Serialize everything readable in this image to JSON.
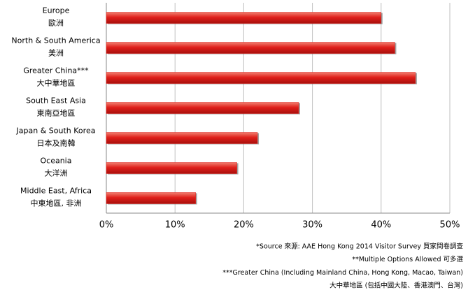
{
  "chart_data": {
    "type": "bar",
    "orientation": "horizontal",
    "categories": [
      "Europe",
      "North & South America",
      "Greater China***",
      "South East Asia",
      "Japan & South Korea",
      "Oceania",
      "Middle East, Africa"
    ],
    "categories_zh": [
      "歐洲",
      "美洲",
      "大中華地區",
      "東南亞地區",
      "日本及南韓",
      "大洋洲",
      "中東地區, 非洲"
    ],
    "values": [
      40,
      42,
      45,
      28,
      22,
      19,
      13
    ],
    "color": "#e0201b",
    "xlim": [
      0,
      50
    ],
    "xticks": [
      {
        "value": 0,
        "label": "0%"
      },
      {
        "value": 10,
        "label": "10%"
      },
      {
        "value": 20,
        "label": "20%"
      },
      {
        "value": 30,
        "label": "30%"
      },
      {
        "value": 40,
        "label": "40%"
      },
      {
        "value": 50,
        "label": "50%"
      }
    ],
    "grid": true,
    "notes": [
      "*Source 來源: AAE Hong Kong 2014 Visitor Survey 買家問卷調查",
      "**Multiple Options Allowed 可多選",
      "***Greater China (Including Mainland China, Hong Kong, Macao, Taiwan)",
      "大中華地區 (包括中國大陸、香港澳門、台灣)"
    ]
  }
}
